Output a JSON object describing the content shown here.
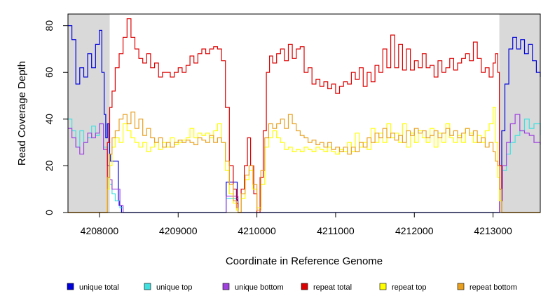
{
  "chart_data": {
    "type": "line",
    "title": "",
    "xlabel": "Coordinate in Reference Genome",
    "ylabel": "Read Coverage Depth",
    "xlim": [
      4207600,
      4213600
    ],
    "ylim": [
      0,
      85
    ],
    "x_ticks": [
      4208000,
      4209000,
      4210000,
      4211000,
      4212000,
      4213000
    ],
    "x_tick_labels": [
      "4208000",
      "4209000",
      "4210000",
      "4211000",
      "4212000",
      "4213000"
    ],
    "y_ticks": [
      0,
      20,
      40,
      60,
      80
    ],
    "y_tick_labels": [
      "0",
      "20",
      "40",
      "60",
      "80"
    ],
    "shaded_regions": [
      {
        "x_start": 4207600,
        "x_end": 4208130,
        "color": "#d9d9d9"
      },
      {
        "x_start": 4213080,
        "x_end": 4213600,
        "color": "#d9d9d9"
      }
    ],
    "legend": {
      "placement": "bottom"
    },
    "series": [
      {
        "name": "unique total",
        "color": "#0000dd",
        "x": [
          4207600,
          4207650,
          4207700,
          4207750,
          4207800,
          4207850,
          4207900,
          4207950,
          4208000,
          4208030,
          4208060,
          4208080,
          4208100,
          4208120,
          4208130,
          4208140,
          4208150,
          4208200,
          4208230,
          4208240,
          4208250,
          4208280,
          4208300,
          4209600,
          4209610,
          4209650,
          4209700,
          4209740,
          4209750,
          4209760,
          4213050,
          4213080,
          4213110,
          4213150,
          4213200,
          4213250,
          4213300,
          4213350,
          4213400,
          4213450,
          4213500,
          4213550,
          4213600
        ],
        "y": [
          80,
          74,
          55,
          62,
          58,
          68,
          62,
          72,
          78,
          60,
          42,
          32,
          38,
          30,
          25,
          22,
          22,
          22,
          22,
          5,
          3,
          0,
          0,
          0,
          13,
          13,
          13,
          13,
          5,
          0,
          0,
          10,
          35,
          55,
          70,
          75,
          70,
          74,
          68,
          72,
          65,
          60,
          58
        ]
      },
      {
        "name": "unique top",
        "color": "#40e0e0",
        "x": [
          4207600,
          4207650,
          4207700,
          4207750,
          4207800,
          4207850,
          4207900,
          4207950,
          4208000,
          4208050,
          4208100,
          4208130,
          4208160,
          4208200,
          4208230,
          4208260,
          4208300,
          4209600,
          4209610,
          4209700,
          4209740,
          4209760,
          4213050,
          4213080,
          4213120,
          4213170,
          4213220,
          4213280,
          4213340,
          4213400,
          4213460,
          4213520,
          4213600
        ],
        "y": [
          40,
          35,
          28,
          35,
          30,
          32,
          37,
          33,
          38,
          28,
          20,
          12,
          8,
          5,
          5,
          2,
          0,
          0,
          6,
          6,
          6,
          0,
          0,
          5,
          18,
          25,
          30,
          33,
          35,
          40,
          36,
          38,
          33
        ]
      },
      {
        "name": "unique bottom",
        "color": "#a040e0",
        "x": [
          4207600,
          4207650,
          4207700,
          4207750,
          4207800,
          4207850,
          4207900,
          4207950,
          4208000,
          4208050,
          4208100,
          4208130,
          4208160,
          4208200,
          4208230,
          4208260,
          4208300,
          4209600,
          4209610,
          4209700,
          4209740,
          4209760,
          4213050,
          4213080,
          4213120,
          4213170,
          4213220,
          4213280,
          4213340,
          4213400,
          4213460,
          4213520,
          4213600
        ],
        "y": [
          36,
          32,
          28,
          25,
          30,
          34,
          32,
          34,
          38,
          27,
          20,
          14,
          10,
          10,
          10,
          3,
          0,
          0,
          7,
          7,
          7,
          0,
          0,
          5,
          20,
          30,
          38,
          42,
          35,
          34,
          33,
          30,
          29
        ]
      },
      {
        "name": "repeat total",
        "color": "#dd0000",
        "x": [
          4207600,
          4207900,
          4207950,
          4208000,
          4208050,
          4208100,
          4208130,
          4208160,
          4208200,
          4208250,
          4208300,
          4208350,
          4208400,
          4208450,
          4208500,
          4208550,
          4208600,
          4208650,
          4208700,
          4208750,
          4208800,
          4208850,
          4208900,
          4208950,
          4209000,
          4209050,
          4209100,
          4209150,
          4209200,
          4209250,
          4209300,
          4209350,
          4209400,
          4209450,
          4209500,
          4209550,
          4209600,
          4209650,
          4209700,
          4209740,
          4209760,
          4209800,
          4209840,
          4209880,
          4209920,
          4209960,
          4210000,
          4210040,
          4210080,
          4210120,
          4210160,
          4210200,
          4210250,
          4210300,
          4210350,
          4210400,
          4210450,
          4210500,
          4210550,
          4210600,
          4210650,
          4210700,
          4210750,
          4210800,
          4210850,
          4210900,
          4210950,
          4211000,
          4211050,
          4211100,
          4211150,
          4211200,
          4211250,
          4211300,
          4211350,
          4211400,
          4211450,
          4211500,
          4211550,
          4211600,
          4211650,
          4211700,
          4211750,
          4211800,
          4211850,
          4211900,
          4211950,
          4212000,
          4212050,
          4212100,
          4212150,
          4212200,
          4212250,
          4212300,
          4212350,
          4212400,
          4212450,
          4212500,
          4212550,
          4212600,
          4212650,
          4212700,
          4212750,
          4212800,
          4212850,
          4212900,
          4212950,
          4213000,
          4213030,
          4213060,
          4213080,
          4213110,
          4213150,
          4213200,
          4213600
        ],
        "y": [
          0,
          0,
          0,
          0,
          0,
          30,
          45,
          52,
          62,
          68,
          75,
          83,
          75,
          70,
          66,
          64,
          68,
          62,
          64,
          58,
          60,
          60,
          58,
          60,
          62,
          60,
          63,
          67,
          64,
          68,
          70,
          68,
          70,
          71,
          70,
          65,
          45,
          20,
          10,
          4,
          0,
          10,
          20,
          32,
          20,
          8,
          0,
          15,
          35,
          60,
          67,
          64,
          68,
          70,
          65,
          72,
          66,
          70,
          71,
          60,
          62,
          55,
          57,
          54,
          56,
          53,
          55,
          51,
          54,
          56,
          55,
          60,
          57,
          62,
          54,
          60,
          56,
          63,
          60,
          70,
          62,
          76,
          62,
          72,
          61,
          70,
          61,
          65,
          62,
          68,
          62,
          63,
          58,
          65,
          60,
          62,
          66,
          61,
          64,
          66,
          68,
          65,
          73,
          66,
          60,
          62,
          58,
          64,
          68,
          60,
          20,
          0,
          0,
          0,
          0
        ]
      },
      {
        "name": "repeat top",
        "color": "#ffff00",
        "x": [
          4207600,
          4208050,
          4208100,
          4208130,
          4208160,
          4208200,
          4208250,
          4208300,
          4208350,
          4208400,
          4208450,
          4208500,
          4208550,
          4208600,
          4208650,
          4208700,
          4208750,
          4208800,
          4208850,
          4208900,
          4208950,
          4209000,
          4209050,
          4209100,
          4209150,
          4209200,
          4209250,
          4209300,
          4209350,
          4209400,
          4209450,
          4209500,
          4209550,
          4209600,
          4209650,
          4209700,
          4209740,
          4209760,
          4209800,
          4209850,
          4209900,
          4209950,
          4210000,
          4210050,
          4210100,
          4210150,
          4210200,
          4210250,
          4210300,
          4210350,
          4210400,
          4210450,
          4210500,
          4210550,
          4210600,
          4210650,
          4210700,
          4210750,
          4210800,
          4210850,
          4210900,
          4210950,
          4211000,
          4211050,
          4211100,
          4211150,
          4211200,
          4211250,
          4211300,
          4211350,
          4211400,
          4211450,
          4211500,
          4211550,
          4211600,
          4211650,
          4211700,
          4211750,
          4211800,
          4211850,
          4211900,
          4211950,
          4212000,
          4212050,
          4212100,
          4212150,
          4212200,
          4212250,
          4212300,
          4212350,
          4212400,
          4212450,
          4212500,
          4212550,
          4212600,
          4212650,
          4212700,
          4212750,
          4212800,
          4212850,
          4212900,
          4212950,
          4213000,
          4213030,
          4213060,
          4213080,
          4213110,
          4213150,
          4213600
        ],
        "y": [
          0,
          0,
          10,
          20,
          28,
          32,
          30,
          38,
          35,
          32,
          30,
          28,
          30,
          26,
          28,
          30,
          27,
          30,
          28,
          32,
          29,
          30,
          31,
          32,
          36,
          32,
          34,
          33,
          34,
          32,
          35,
          38,
          30,
          18,
          8,
          4,
          1,
          0,
          6,
          14,
          18,
          10,
          2,
          12,
          28,
          32,
          35,
          32,
          30,
          27,
          28,
          26,
          27,
          26,
          28,
          27,
          26,
          28,
          27,
          26,
          28,
          26,
          25,
          27,
          26,
          30,
          26,
          34,
          28,
          30,
          27,
          36,
          30,
          34,
          30,
          38,
          32,
          34,
          30,
          38,
          28,
          34,
          30,
          35,
          32,
          30,
          36,
          28,
          34,
          30,
          38,
          32,
          30,
          33,
          30,
          36,
          34,
          30,
          33,
          30,
          35,
          38,
          45,
          30,
          15,
          5,
          0,
          0,
          0
        ]
      },
      {
        "name": "repeat bottom",
        "color": "#e8a020",
        "x": [
          4207600,
          4208050,
          4208100,
          4208130,
          4208160,
          4208200,
          4208250,
          4208300,
          4208350,
          4208400,
          4208450,
          4208500,
          4208550,
          4208600,
          4208650,
          4208700,
          4208750,
          4208800,
          4208850,
          4208900,
          4208950,
          4209000,
          4209050,
          4209100,
          4209150,
          4209200,
          4209250,
          4209300,
          4209350,
          4209400,
          4209450,
          4209500,
          4209550,
          4209600,
          4209650,
          4209700,
          4209740,
          4209760,
          4209800,
          4209850,
          4209900,
          4209950,
          4210000,
          4210050,
          4210100,
          4210150,
          4210200,
          4210250,
          4210300,
          4210350,
          4210400,
          4210450,
          4210500,
          4210550,
          4210600,
          4210650,
          4210700,
          4210750,
          4210800,
          4210850,
          4210900,
          4210950,
          4211000,
          4211050,
          4211100,
          4211150,
          4211200,
          4211250,
          4211300,
          4211350,
          4211400,
          4211450,
          4211500,
          4211550,
          4211600,
          4211650,
          4211700,
          4211750,
          4211800,
          4211850,
          4211900,
          4211950,
          4212000,
          4212050,
          4212100,
          4212150,
          4212200,
          4212250,
          4212300,
          4212350,
          4212400,
          4212450,
          4212500,
          4212550,
          4212600,
          4212650,
          4212700,
          4212750,
          4212800,
          4212850,
          4212900,
          4212950,
          4213000,
          4213030,
          4213060,
          4213080,
          4213110,
          4213150,
          4213600
        ],
        "y": [
          0,
          0,
          15,
          25,
          32,
          35,
          40,
          42,
          38,
          43,
          36,
          40,
          33,
          36,
          32,
          30,
          32,
          28,
          30,
          28,
          30,
          31,
          30,
          31,
          30,
          29,
          32,
          31,
          30,
          33,
          30,
          32,
          30,
          22,
          12,
          5,
          2,
          0,
          8,
          16,
          20,
          12,
          1,
          18,
          32,
          38,
          36,
          38,
          40,
          36,
          42,
          38,
          35,
          33,
          32,
          30,
          31,
          29,
          30,
          28,
          30,
          27,
          28,
          26,
          28,
          25,
          28,
          26,
          30,
          28,
          32,
          30,
          34,
          32,
          36,
          32,
          34,
          31,
          33,
          30,
          35,
          33,
          36,
          34,
          35,
          32,
          33,
          35,
          32,
          34,
          36,
          33,
          35,
          32,
          34,
          36,
          33,
          35,
          30,
          32,
          28,
          30,
          26,
          22,
          20,
          10,
          0,
          0,
          0
        ]
      }
    ]
  }
}
